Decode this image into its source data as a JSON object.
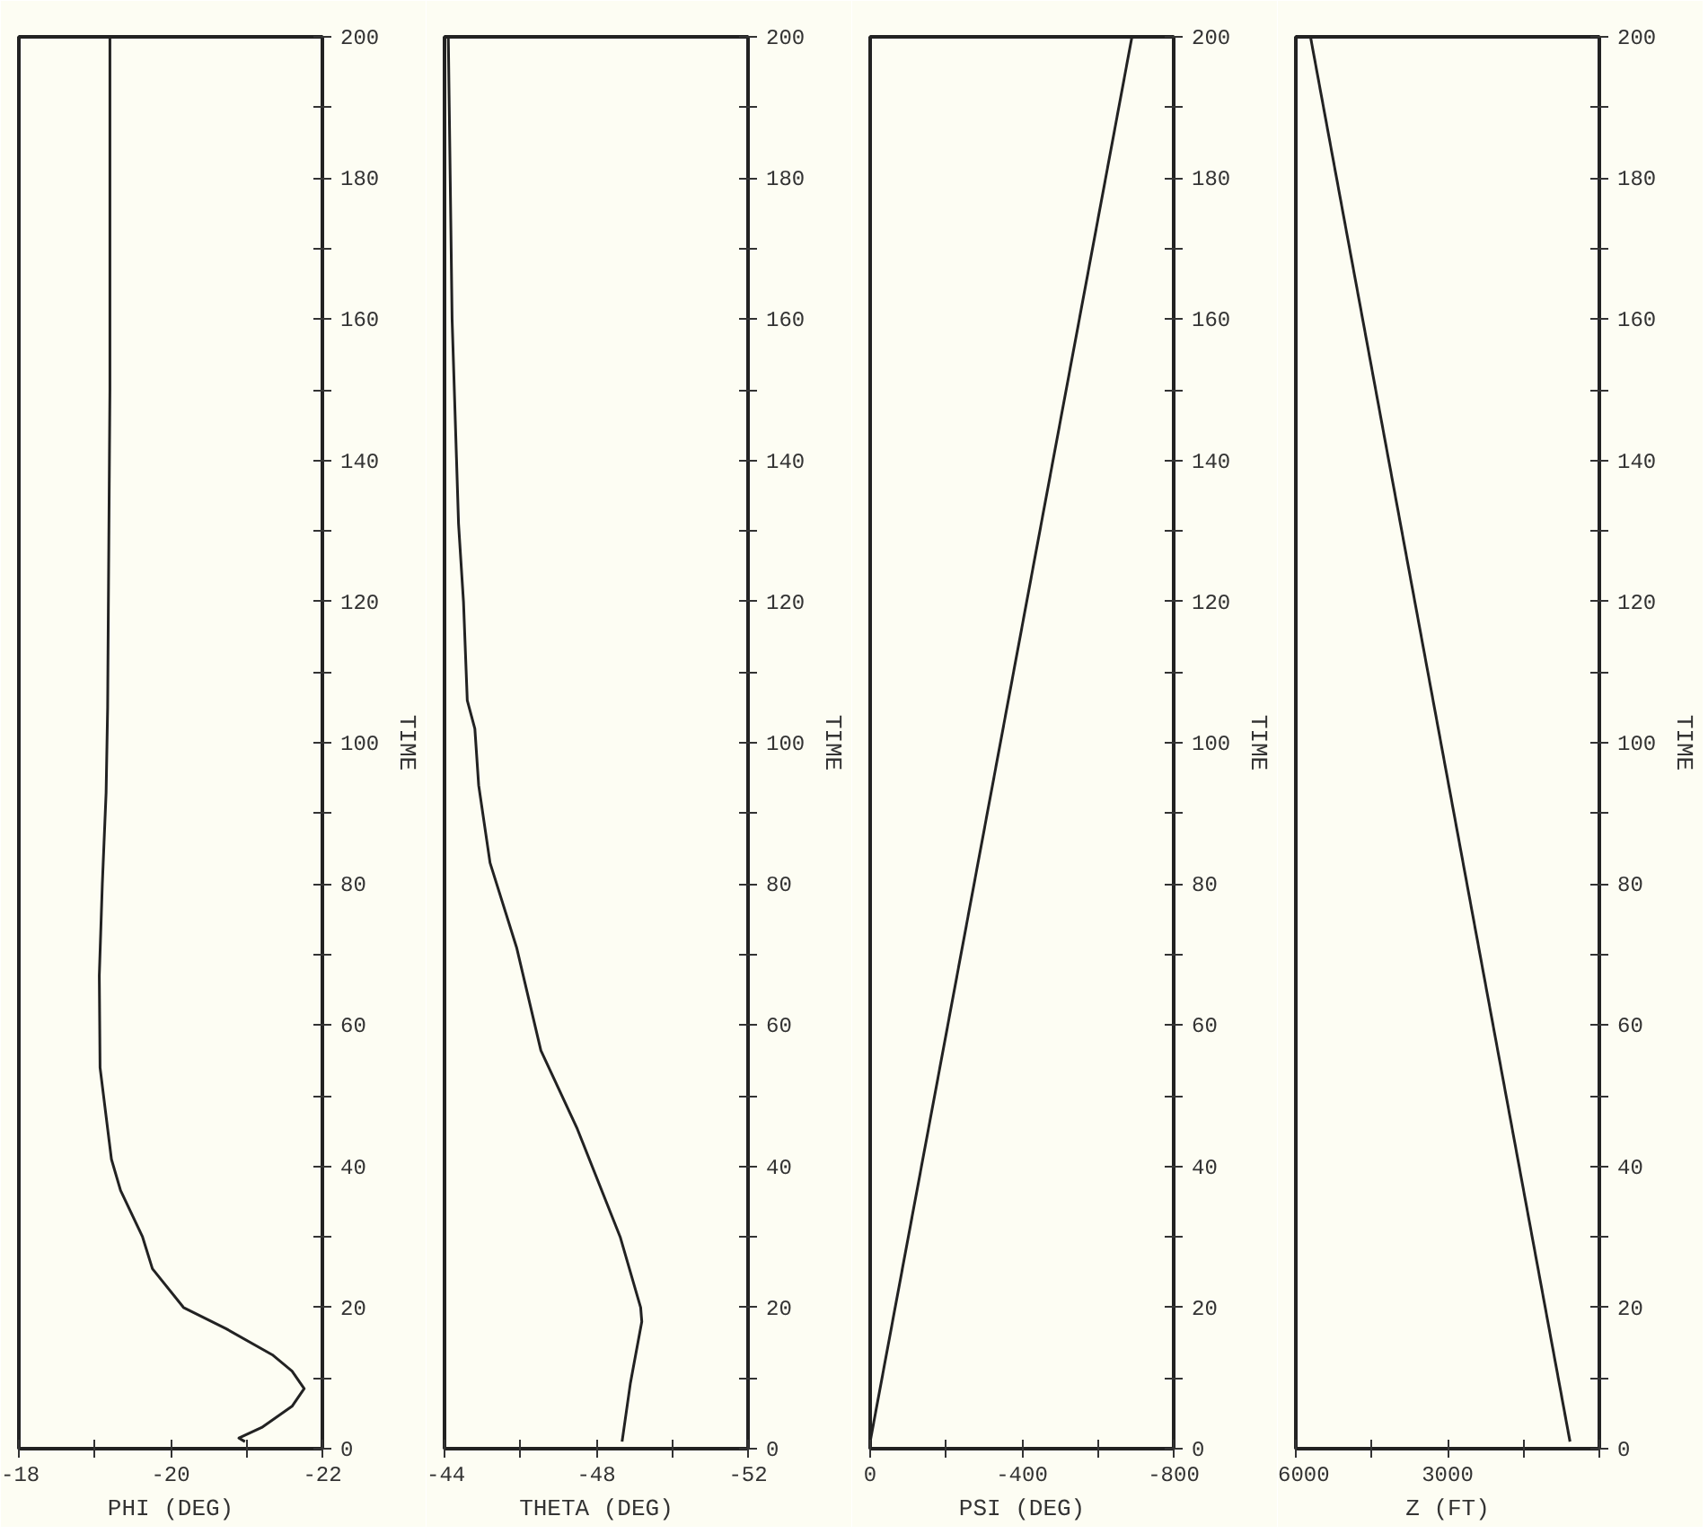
{
  "chart_data": [
    {
      "type": "line",
      "xlabel": "PHI (DEG)",
      "ylabel": "TIME",
      "xlim": [
        -18,
        -22
      ],
      "xticks": [
        -18,
        {
          "value": -19,
          "label": null
        },
        -20,
        {
          "value": -21,
          "label": null
        },
        -22
      ],
      "ylim": [
        0,
        200
      ],
      "yticks": [
        0,
        {
          "value": 10,
          "label": null
        },
        20,
        {
          "value": 30,
          "label": null
        },
        40,
        {
          "value": 50,
          "label": null
        },
        60,
        {
          "value": 70,
          "label": null
        },
        80,
        {
          "value": 90,
          "label": null
        },
        100,
        {
          "value": 110,
          "label": null
        },
        120,
        {
          "value": 130,
          "label": null
        },
        140,
        {
          "value": 150,
          "label": null
        },
        160,
        {
          "value": 170,
          "label": null
        },
        180,
        {
          "value": 190,
          "label": null
        },
        200
      ],
      "grid": false,
      "marker": "none",
      "line_style": "solid",
      "series": [
        {
          "color": "#222222",
          "x": [
            -20.98,
            -20.9,
            -21.2,
            -21.6,
            -21.76,
            -21.6,
            -21.34,
            -20.73,
            -20.17,
            -19.76,
            -19.63,
            -19.34,
            -19.22,
            -19.07,
            -19.06,
            -19.1,
            -19.15,
            -19.17,
            -19.2,
            -19.2
          ],
          "values": [
            1,
            1.5,
            3,
            6,
            8.5,
            11,
            13.3,
            17,
            20,
            25.5,
            30,
            36.6,
            41,
            54,
            67,
            80,
            93,
            105,
            150,
            200
          ]
        }
      ]
    },
    {
      "type": "line",
      "xlabel": "THETA (DEG)",
      "ylabel": "TIME",
      "xlim": [
        -44,
        -52
      ],
      "xticks": [
        -44,
        {
          "value": -46,
          "label": null
        },
        -48,
        {
          "value": -50,
          "label": null
        },
        -52
      ],
      "ylim": [
        0,
        200
      ],
      "yticks": [
        0,
        {
          "value": 10,
          "label": null
        },
        20,
        {
          "value": 30,
          "label": null
        },
        40,
        {
          "value": 50,
          "label": null
        },
        60,
        {
          "value": 70,
          "label": null
        },
        80,
        {
          "value": 90,
          "label": null
        },
        100,
        {
          "value": 110,
          "label": null
        },
        120,
        {
          "value": 130,
          "label": null
        },
        140,
        {
          "value": 150,
          "label": null
        },
        160,
        {
          "value": 170,
          "label": null
        },
        180,
        {
          "value": 190,
          "label": null
        },
        200
      ],
      "grid": false,
      "marker": "none",
      "line_style": "solid",
      "series": [
        {
          "color": "#222222",
          "x": [
            -48.68,
            -48.9,
            -49.2,
            -49.17,
            -48.63,
            -47.5,
            -46.54,
            -45.9,
            -45.2,
            -44.9,
            -44.8,
            -44.6,
            -44.5,
            -44.37,
            -44.2,
            -44.1
          ],
          "values": [
            1,
            9.3,
            18,
            20,
            30,
            45.3,
            56.4,
            71,
            83,
            94,
            102,
            106,
            120,
            131,
            160,
            200
          ]
        }
      ]
    },
    {
      "type": "line",
      "xlabel": "PSI (DEG)",
      "ylabel": "TIME",
      "xlim": [
        0,
        -800
      ],
      "xticks": [
        0,
        {
          "value": -200,
          "label": null
        },
        -400,
        {
          "value": -600,
          "label": null
        },
        -800
      ],
      "ylim": [
        0,
        200
      ],
      "yticks": [
        0,
        {
          "value": 10,
          "label": null
        },
        20,
        {
          "value": 30,
          "label": null
        },
        40,
        {
          "value": 50,
          "label": null
        },
        60,
        {
          "value": 70,
          "label": null
        },
        80,
        {
          "value": 90,
          "label": null
        },
        100,
        {
          "value": 110,
          "label": null
        },
        120,
        {
          "value": 130,
          "label": null
        },
        140,
        {
          "value": 150,
          "label": null
        },
        160,
        {
          "value": 170,
          "label": null
        },
        180,
        {
          "value": 190,
          "label": null
        },
        200
      ],
      "grid": false,
      "marker": "none",
      "line_style": "solid",
      "series": [
        {
          "color": "#222222",
          "x": [
            0,
            -690
          ],
          "values": [
            1,
            200
          ]
        }
      ]
    },
    {
      "type": "line",
      "xlabel": "Z (FT)",
      "ylabel": "TIME",
      "xlim": [
        6000,
        0
      ],
      "xticks": [
        6000,
        {
          "value": 4500,
          "label": null
        },
        3000,
        {
          "value": 1500,
          "label": null
        },
        {
          "value": 0,
          "label": null
        }
      ],
      "ylim": [
        0,
        200
      ],
      "yticks": [
        0,
        {
          "value": 10,
          "label": null
        },
        20,
        {
          "value": 30,
          "label": null
        },
        40,
        {
          "value": 50,
          "label": null
        },
        60,
        {
          "value": 70,
          "label": null
        },
        80,
        {
          "value": 90,
          "label": null
        },
        100,
        {
          "value": 110,
          "label": null
        },
        120,
        {
          "value": 130,
          "label": null
        },
        140,
        {
          "value": 150,
          "label": null
        },
        160,
        {
          "value": 170,
          "label": null
        },
        180,
        {
          "value": 190,
          "label": null
        },
        200
      ],
      "grid": false,
      "marker": "none",
      "line_style": "solid",
      "series": [
        {
          "color": "#222222",
          "x": [
            580,
            5710
          ],
          "values": [
            1,
            200
          ]
        }
      ]
    }
  ]
}
